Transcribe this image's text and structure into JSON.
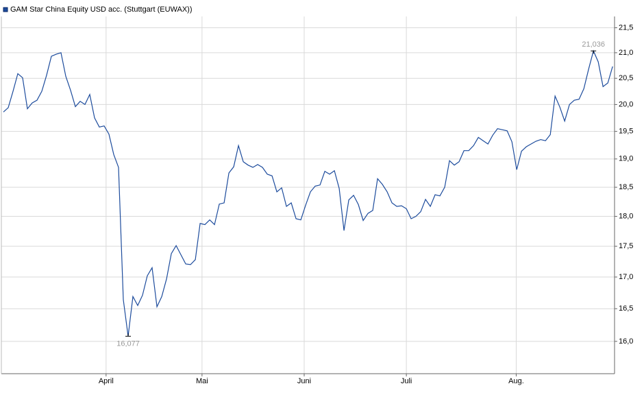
{
  "chart_data": {
    "type": "line",
    "series": [
      {
        "name": "GAM Star China Equity USD acc. (Stuttgart (EUWAX))",
        "color": "#1c4b9c",
        "values": [
          19.86,
          19.94,
          20.25,
          20.59,
          20.51,
          19.92,
          20.03,
          20.08,
          20.25,
          20.56,
          20.93,
          20.97,
          21.0,
          20.54,
          20.27,
          19.96,
          20.06,
          20.0,
          20.19,
          19.75,
          19.58,
          19.6,
          19.45,
          19.08,
          18.85,
          16.64,
          16.077,
          16.69,
          16.55,
          16.71,
          17.02,
          17.15,
          16.53,
          16.69,
          16.97,
          17.38,
          17.51,
          17.36,
          17.21,
          17.2,
          17.28,
          17.88,
          17.86,
          17.94,
          17.86,
          18.21,
          18.23,
          18.75,
          18.86,
          19.24,
          18.95,
          18.89,
          18.85,
          18.9,
          18.85,
          18.73,
          18.7,
          18.42,
          18.49,
          18.17,
          18.23,
          17.96,
          17.94,
          18.19,
          18.42,
          18.52,
          18.54,
          18.78,
          18.73,
          18.79,
          18.48,
          17.76,
          18.28,
          18.36,
          18.2,
          17.93,
          18.05,
          18.1,
          18.65,
          18.55,
          18.42,
          18.23,
          18.17,
          18.18,
          18.13,
          17.96,
          18.0,
          18.08,
          18.29,
          18.17,
          18.37,
          18.35,
          18.5,
          18.97,
          18.89,
          18.95,
          19.15,
          19.15,
          19.24,
          19.39,
          19.33,
          19.27,
          19.43,
          19.55,
          19.53,
          19.51,
          19.31,
          18.81,
          19.14,
          19.22,
          19.27,
          19.32,
          19.35,
          19.33,
          19.44,
          20.16,
          19.95,
          19.69,
          20.0,
          20.08,
          20.1,
          20.3,
          20.68,
          21.036,
          20.82,
          20.34,
          20.41,
          20.73
        ]
      }
    ],
    "x": [
      0,
      1,
      2,
      3,
      4,
      5,
      6,
      7,
      8,
      9,
      10,
      11,
      12,
      13,
      14,
      15,
      16,
      17,
      18,
      19,
      20,
      21,
      22,
      23,
      24,
      25,
      26,
      27,
      28,
      29,
      30,
      31,
      32,
      33,
      34,
      35,
      36,
      37,
      38,
      39,
      40,
      41,
      42,
      43,
      44,
      45,
      46,
      47,
      48,
      49,
      50,
      51,
      52,
      53,
      54,
      55,
      56,
      57,
      58,
      59,
      60,
      61,
      62,
      63,
      64,
      65,
      66,
      67,
      68,
      69,
      70,
      71,
      72,
      73,
      74,
      75,
      76,
      77,
      78,
      79,
      80,
      81,
      82,
      83,
      84,
      85,
      86,
      87,
      88,
      89,
      90,
      91,
      92,
      93,
      94,
      95,
      96,
      97,
      98,
      99,
      100,
      101,
      102,
      103,
      104,
      105,
      106,
      107,
      108,
      109,
      110,
      111,
      112,
      113,
      114,
      115,
      116,
      117,
      118,
      119,
      120,
      121,
      122,
      123,
      124,
      125,
      126,
      127
    ],
    "xlim": [
      0,
      127.4
    ],
    "xticks": [
      {
        "value": 21.4,
        "label": "April"
      },
      {
        "value": 41.4,
        "label": "Mai"
      },
      {
        "value": 62.7,
        "label": "Juni"
      },
      {
        "value": 84,
        "label": "Juli"
      },
      {
        "value": 106.9,
        "label": "Aug."
      }
    ],
    "ylim": [
      15.52,
      21.73
    ],
    "yscale": "log",
    "yticks": [
      {
        "value": 16,
        "label": "16,0"
      },
      {
        "value": 16.5,
        "label": "16,5"
      },
      {
        "value": 17,
        "label": "17,0"
      },
      {
        "value": 17.5,
        "label": "17,5"
      },
      {
        "value": 18,
        "label": "18,0"
      },
      {
        "value": 18.5,
        "label": "18,5"
      },
      {
        "value": 19,
        "label": "19,0"
      },
      {
        "value": 19.5,
        "label": "19,5"
      },
      {
        "value": 20,
        "label": "20,0"
      },
      {
        "value": 20.5,
        "label": "20,5"
      },
      {
        "value": 21,
        "label": "21,0"
      },
      {
        "value": 21.5,
        "label": "21,5"
      }
    ],
    "grid": true,
    "annotations": [
      {
        "label": "16,077",
        "x": 26,
        "y": 16.077,
        "position": "below"
      },
      {
        "label": "21,036",
        "x": 123,
        "y": 21.036,
        "position": "above"
      }
    ]
  }
}
